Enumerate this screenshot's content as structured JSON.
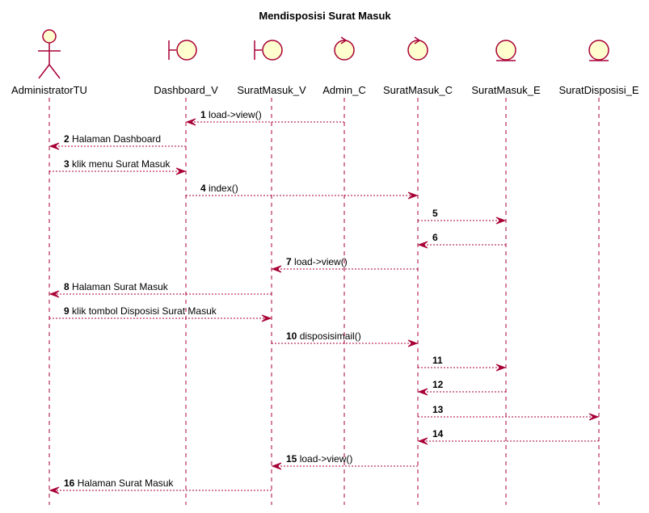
{
  "title": "Mendisposisi Surat Masuk",
  "colors": {
    "line": "#a80036",
    "fill": "#fefece",
    "text": "#000000"
  },
  "participants": [
    {
      "id": "AdministratorTU",
      "label": "AdministratorTU",
      "kind": "actor"
    },
    {
      "id": "Dashboard_V",
      "label": "Dashboard_V",
      "kind": "boundary"
    },
    {
      "id": "SuratMasuk_V",
      "label": "SuratMasuk_V",
      "kind": "boundary"
    },
    {
      "id": "Admin_C",
      "label": "Admin_C",
      "kind": "control"
    },
    {
      "id": "SuratMasuk_C",
      "label": "SuratMasuk_C",
      "kind": "control"
    },
    {
      "id": "SuratMasuk_E",
      "label": "SuratMasuk_E",
      "kind": "entity"
    },
    {
      "id": "SuratDisposisi_E",
      "label": "SuratDisposisi_E",
      "kind": "entity"
    }
  ],
  "messages": [
    {
      "num": "1",
      "label": "load->view()",
      "from": "Admin_C",
      "to": "Dashboard_V"
    },
    {
      "num": "2",
      "label": "Halaman Dashboard",
      "from": "Dashboard_V",
      "to": "AdministratorTU"
    },
    {
      "num": "3",
      "label": "klik menu Surat Masuk",
      "from": "AdministratorTU",
      "to": "Dashboard_V"
    },
    {
      "num": "4",
      "label": "index()",
      "from": "Dashboard_V",
      "to": "SuratMasuk_C"
    },
    {
      "num": "5",
      "label": "",
      "from": "SuratMasuk_C",
      "to": "SuratMasuk_E"
    },
    {
      "num": "6",
      "label": "",
      "from": "SuratMasuk_E",
      "to": "SuratMasuk_C"
    },
    {
      "num": "7",
      "label": "load->view()",
      "from": "SuratMasuk_C",
      "to": "SuratMasuk_V"
    },
    {
      "num": "8",
      "label": "Halaman Surat Masuk",
      "from": "SuratMasuk_V",
      "to": "AdministratorTU"
    },
    {
      "num": "9",
      "label": "klik tombol Disposisi Surat Masuk",
      "from": "AdministratorTU",
      "to": "SuratMasuk_V"
    },
    {
      "num": "10",
      "label": "disposisimail()",
      "from": "SuratMasuk_V",
      "to": "SuratMasuk_C"
    },
    {
      "num": "11",
      "label": "",
      "from": "SuratMasuk_C",
      "to": "SuratMasuk_E"
    },
    {
      "num": "12",
      "label": "",
      "from": "SuratMasuk_E",
      "to": "SuratMasuk_C"
    },
    {
      "num": "13",
      "label": "",
      "from": "SuratMasuk_C",
      "to": "SuratDisposisi_E"
    },
    {
      "num": "14",
      "label": "",
      "from": "SuratDisposisi_E",
      "to": "SuratMasuk_C"
    },
    {
      "num": "15",
      "label": "load->view()",
      "from": "SuratMasuk_C",
      "to": "SuratMasuk_V"
    },
    {
      "num": "16",
      "label": "Halaman Surat Masuk",
      "from": "SuratMasuk_V",
      "to": "AdministratorTU"
    }
  ]
}
